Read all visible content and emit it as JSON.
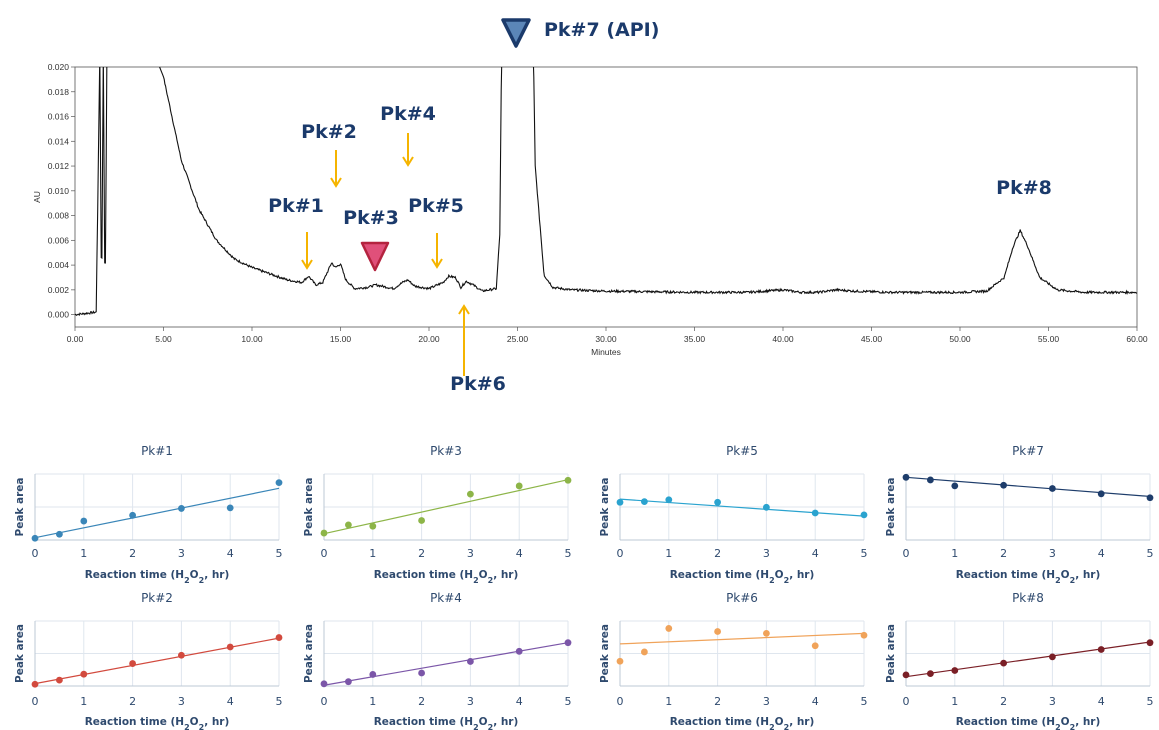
{
  "chart_data": [
    {
      "type": "line",
      "xlabel": "Minutes",
      "ylabel": "AU",
      "xlim": [
        0,
        60
      ],
      "ylim": [
        -0.001,
        0.02
      ],
      "x_ticks": [
        "0.00",
        "5.00",
        "10.00",
        "15.00",
        "20.00",
        "25.00",
        "30.00",
        "35.00",
        "40.00",
        "45.00",
        "50.00",
        "55.00",
        "60.00"
      ],
      "y_ticks": [
        "0.000",
        "0.002",
        "0.004",
        "0.006",
        "0.008",
        "0.010",
        "0.012",
        "0.014",
        "0.016",
        "0.018",
        "0.020"
      ],
      "grid": false,
      "series_color": "#111111",
      "trace": {
        "x": [
          0,
          1.2,
          1.4,
          1.5,
          1.6,
          1.7,
          1.8,
          2.0,
          4.5,
          5.0,
          6.0,
          7.0,
          8.0,
          9.0,
          10.0,
          11.0,
          12.0,
          12.8,
          13.2,
          13.6,
          14.0,
          14.5,
          14.7,
          15.0,
          15.3,
          15.8,
          16.5,
          17.0,
          18.0,
          18.5,
          18.8,
          19.2,
          20.0,
          20.8,
          21.1,
          21.5,
          21.8,
          22.1,
          22.5,
          23.0,
          23.8,
          24.0,
          24.1,
          25.9,
          26.0,
          26.5,
          27.0,
          28.0,
          30.0,
          35.0,
          38.0,
          40.0,
          41.0,
          42.0,
          43.0,
          44.0,
          46.0,
          50.0,
          51.5,
          52.5,
          53.0,
          53.4,
          53.8,
          54.5,
          55.5,
          57.0,
          60.0
        ],
        "y": [
          0.0,
          0.0002,
          0.021,
          0.0005,
          0.021,
          0.0,
          0.021,
          0.021,
          0.021,
          0.0192,
          0.0125,
          0.0085,
          0.006,
          0.0045,
          0.0038,
          0.0033,
          0.0028,
          0.0026,
          0.0031,
          0.0024,
          0.0026,
          0.0042,
          0.0038,
          0.0041,
          0.0028,
          0.0021,
          0.0022,
          0.0024,
          0.0021,
          0.0026,
          0.0028,
          0.0023,
          0.0021,
          0.0026,
          0.0031,
          0.003,
          0.0022,
          0.0027,
          0.0024,
          0.0019,
          0.0021,
          0.0065,
          0.021,
          0.021,
          0.012,
          0.0032,
          0.0022,
          0.002,
          0.0019,
          0.0018,
          0.0018,
          0.002,
          0.0018,
          0.0018,
          0.002,
          0.0019,
          0.0018,
          0.0018,
          0.0019,
          0.003,
          0.0055,
          0.0068,
          0.0056,
          0.003,
          0.002,
          0.0018,
          0.0018
        ]
      },
      "annotations": [
        {
          "label": "Pk#1",
          "x": 13.2
        },
        {
          "label": "Pk#2",
          "x": 14.7
        },
        {
          "label": "Pk#3",
          "x": 17.0
        },
        {
          "label": "Pk#4",
          "x": 18.8
        },
        {
          "label": "Pk#5",
          "x": 20.8
        },
        {
          "label": "Pk#6",
          "x": 22.0
        },
        {
          "label": "Pk#7 (API)",
          "x": 25.0
        },
        {
          "label": "Pk#8",
          "x": 53.4
        }
      ],
      "arrow_color": "#f5b400",
      "marker_pk3_color": "#e0507a",
      "marker_api_color": "#1b3a6b"
    },
    {
      "type": "scatter",
      "panels": [
        {
          "title": "Pk#1",
          "color": "#3a86b8",
          "x": [
            0,
            0.5,
            1,
            2,
            3,
            4,
            5
          ],
          "y": [
            0.03,
            0.1,
            0.33,
            0.43,
            0.55,
            0.56,
            1.0
          ],
          "fit": [
            0.04,
            0.9
          ],
          "ylim": [
            0,
            1.15
          ]
        },
        {
          "title": "Pk#2",
          "color": "#d24a3e",
          "x": [
            0,
            0.5,
            1,
            2,
            3,
            4,
            5
          ],
          "y": [
            0.03,
            0.1,
            0.2,
            0.38,
            0.52,
            0.66,
            0.82
          ],
          "fit": [
            0.04,
            0.81
          ],
          "ylim": [
            0,
            1.1
          ]
        },
        {
          "title": "Pk#3",
          "color": "#8db548",
          "x": [
            0,
            0.5,
            1,
            2,
            3,
            4,
            5
          ],
          "y": [
            0.11,
            0.24,
            0.22,
            0.31,
            0.73,
            0.86,
            0.95
          ],
          "fit": [
            0.1,
            0.96
          ],
          "ylim": [
            0,
            1.05
          ]
        },
        {
          "title": "Pk#4",
          "color": "#7b56a8",
          "x": [
            0,
            0.5,
            1,
            2,
            3,
            4,
            5
          ],
          "y": [
            0.03,
            0.06,
            0.16,
            0.18,
            0.34,
            0.48,
            0.6
          ],
          "fit": [
            0.01,
            0.6
          ],
          "ylim": [
            0,
            0.9
          ]
        },
        {
          "title": "Pk#5",
          "color": "#2aa3cf",
          "x": [
            0,
            0.5,
            1,
            2,
            3,
            4,
            5
          ],
          "y": [
            0.6,
            0.61,
            0.64,
            0.6,
            0.52,
            0.43,
            0.4
          ],
          "fit": [
            0.65,
            0.38
          ],
          "ylim": [
            0,
            1.05
          ]
        },
        {
          "title": "Pk#6",
          "color": "#f0a35a",
          "x": [
            0,
            0.5,
            1,
            2,
            3,
            4,
            5
          ],
          "y": [
            0.4,
            0.55,
            0.93,
            0.88,
            0.85,
            0.65,
            0.82
          ],
          "fit": [
            0.68,
            0.85
          ],
          "ylim": [
            0,
            1.05
          ]
        },
        {
          "title": "Pk#7",
          "color": "#1e3d6b",
          "x": [
            0,
            0.5,
            1,
            2,
            3,
            4,
            5
          ],
          "y": [
            0.95,
            0.91,
            0.82,
            0.83,
            0.78,
            0.7,
            0.64
          ],
          "fit": [
            0.95,
            0.66
          ],
          "ylim": [
            0,
            1.0
          ]
        },
        {
          "title": "Pk#8",
          "color": "#7a1f26",
          "x": [
            0,
            0.5,
            1,
            2,
            3,
            4,
            5
          ],
          "y": [
            0.18,
            0.2,
            0.25,
            0.37,
            0.47,
            0.59,
            0.7
          ],
          "fit": [
            0.15,
            0.71
          ],
          "ylim": [
            0,
            1.05
          ]
        }
      ],
      "xlabel": "Reaction time (H2O2, hr)",
      "ylabel": "Peak area",
      "xlim": [
        0,
        5
      ],
      "x_ticks": [
        "0",
        "1",
        "2",
        "3",
        "4",
        "5"
      ]
    }
  ]
}
